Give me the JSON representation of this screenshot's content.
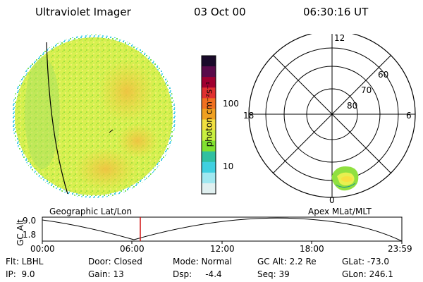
{
  "header": {
    "instrument": "Ultraviolet Imager",
    "date": "03 Oct 00",
    "time": "06:30:16 UT"
  },
  "colorbar": {
    "unit_label": "photon cm⁻²s⁻¹",
    "ticks": [
      "100",
      "10"
    ],
    "colors": [
      "#1a0a2a",
      "#5a0a4a",
      "#a00030",
      "#e03030",
      "#f07020",
      "#f0a020",
      "#f0e040",
      "#c8f040",
      "#80e030",
      "#30c0a0",
      "#40d0e0",
      "#a0e8f0",
      "#e0f0f0"
    ]
  },
  "polar_plot": {
    "mlt_labels": [
      "12",
      "18",
      "6",
      "0"
    ],
    "lat_labels": [
      "60",
      "70",
      "80"
    ]
  },
  "labels": {
    "left": "Geographic Lat/Lon",
    "right": "Apex MLat/MLT"
  },
  "alt_plot": {
    "ylabel": "GC Alt",
    "ytick_top": "9.0",
    "ytick_bottom": "1.8",
    "xticks": [
      "00:00",
      "06:00",
      "12:00",
      "18:00",
      "23:59"
    ],
    "marker_color": "#d01010"
  },
  "info": {
    "row1": [
      "Flt: LBHL",
      "Door: Closed",
      "Mode: Normal",
      "GC Alt: 2.2 Re",
      "GLat: -73.0"
    ],
    "row2": [
      "IP:  9.0",
      "Gain: 13",
      "Dsp:     -4.4",
      "Seq: 39",
      "GLon: 246.1"
    ]
  }
}
